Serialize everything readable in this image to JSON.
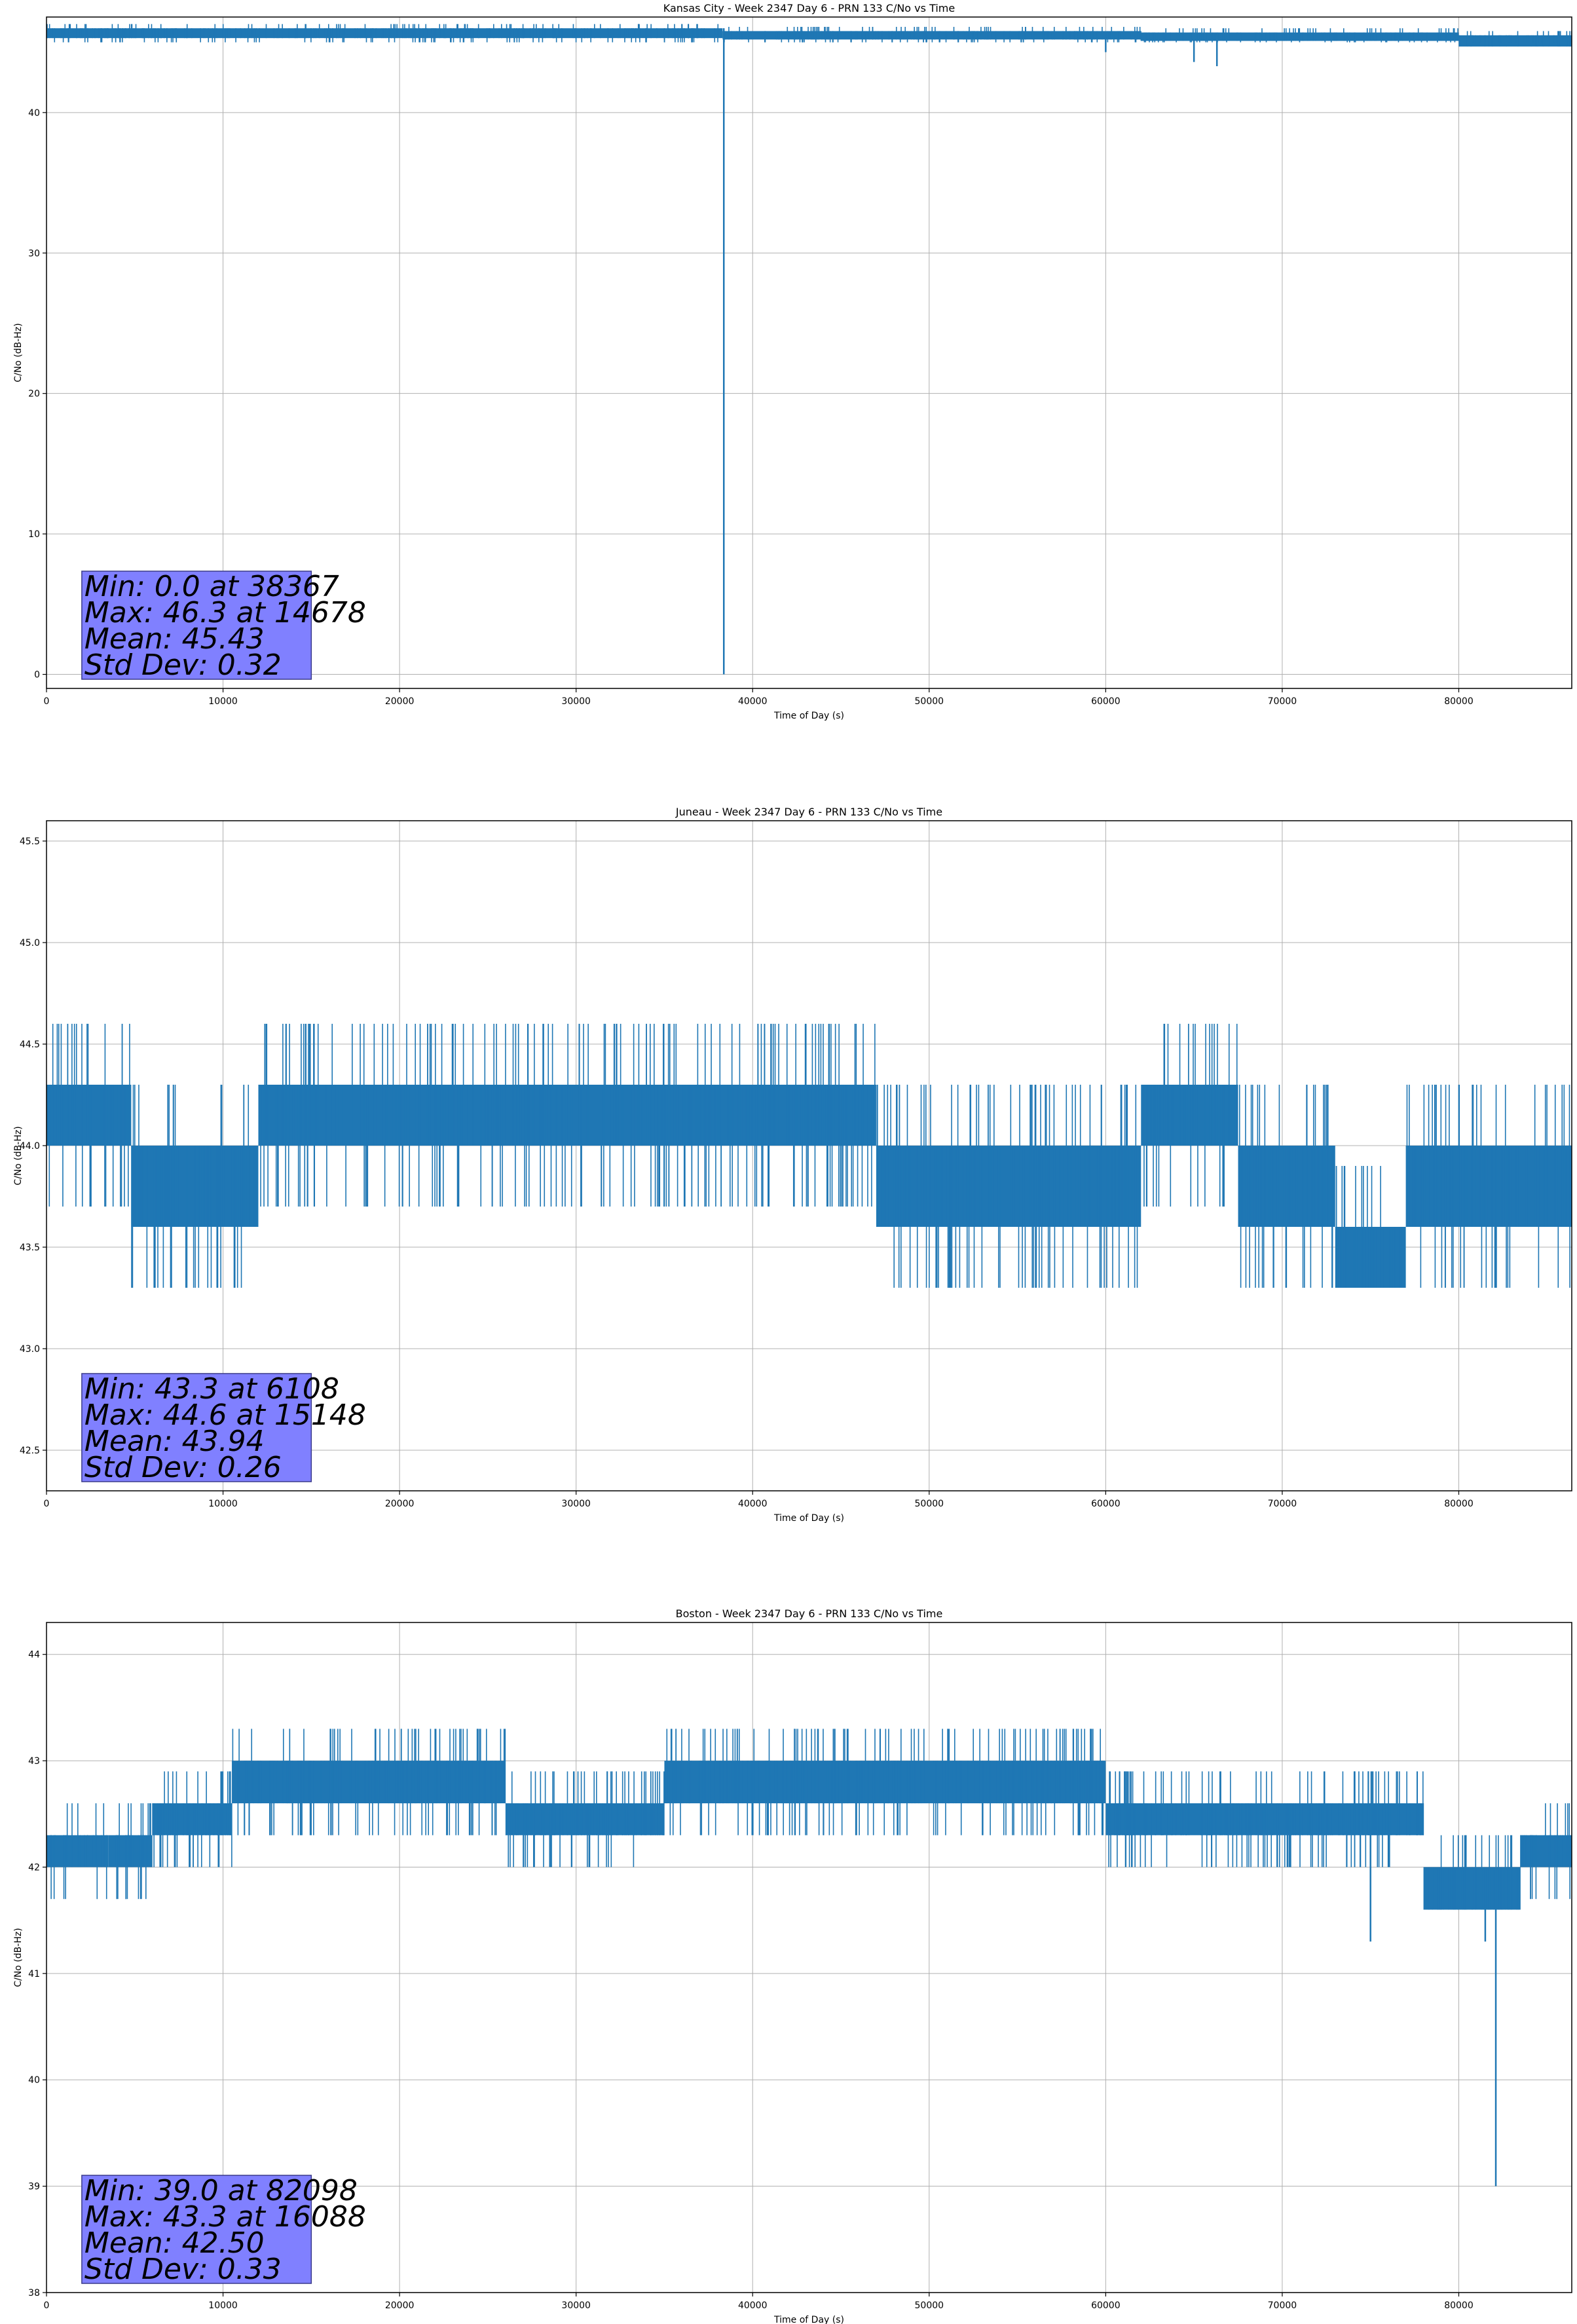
{
  "chart_data": [
    {
      "type": "line",
      "title": "Kansas City - Week 2347 Day 6 - PRN 133 C/No vs Time",
      "xlabel": "Time of Day (s)",
      "ylabel": "C/No (dB-Hz)",
      "xlim": [
        0,
        86400
      ],
      "ylim": [
        -1,
        46.8
      ],
      "xticks": [
        0,
        10000,
        20000,
        30000,
        40000,
        50000,
        60000,
        70000,
        80000
      ],
      "yticks": [
        0,
        10,
        20,
        30,
        40
      ],
      "ytick_labels": [
        "0",
        "10",
        "20",
        "30",
        "40"
      ],
      "color": "#1f77b4",
      "grid": true,
      "band_segments": [
        {
          "x0": 0,
          "x1": 38300,
          "low": 45.3,
          "high": 46.0
        },
        {
          "x0": 38300,
          "x1": 62000,
          "low": 45.2,
          "high": 45.8
        },
        {
          "x0": 62000,
          "x1": 80000,
          "low": 45.1,
          "high": 45.7
        },
        {
          "x0": 80000,
          "x1": 86400,
          "low": 44.7,
          "high": 45.5
        }
      ],
      "noise_low": 45.0,
      "noise_high": 46.3,
      "noise_count": 700,
      "seed": 11,
      "extremes": [
        {
          "x": 38367,
          "low": 0.0,
          "high": 46.0
        },
        {
          "x": 14678,
          "low": 45.3,
          "high": 46.3
        },
        {
          "x": 65000,
          "low": 43.6,
          "high": 45.6
        },
        {
          "x": 66300,
          "low": 43.3,
          "high": 45.5
        },
        {
          "x": 60000,
          "low": 44.3,
          "high": 45.6
        }
      ],
      "stats": [
        "Min: 0.0 at 38367",
        "Max: 46.3 at 14678",
        "Mean: 45.43",
        "Std Dev: 0.32"
      ],
      "stats_box_color": "#8080ff"
    },
    {
      "type": "line",
      "title": "Juneau - Week 2347 Day 6 - PRN 133 C/No vs Time",
      "xlabel": "Time of Day (s)",
      "ylabel": "C/No (dB-Hz)",
      "xlim": [
        0,
        86400
      ],
      "ylim": [
        42.3,
        45.6
      ],
      "xticks": [
        0,
        10000,
        20000,
        30000,
        40000,
        50000,
        60000,
        70000,
        80000
      ],
      "yticks": [
        42.5,
        43.0,
        43.5,
        44.0,
        44.5,
        45.0,
        45.5
      ],
      "ytick_labels": [
        "42.5",
        "43.0",
        "43.5",
        "44.0",
        "44.5",
        "45.0",
        "45.5"
      ],
      "color": "#1f77b4",
      "grid": true,
      "band_segments": [
        {
          "x0": 0,
          "x1": 4800,
          "low": 44.0,
          "high": 44.3
        },
        {
          "x0": 4800,
          "x1": 12000,
          "low": 43.6,
          "high": 44.0
        },
        {
          "x0": 12000,
          "x1": 47000,
          "low": 44.0,
          "high": 44.3
        },
        {
          "x0": 47000,
          "x1": 62000,
          "low": 43.6,
          "high": 44.0
        },
        {
          "x0": 62000,
          "x1": 67500,
          "low": 44.0,
          "high": 44.3
        },
        {
          "x0": 67500,
          "x1": 73000,
          "low": 43.6,
          "high": 44.0
        },
        {
          "x0": 73000,
          "x1": 77000,
          "low": 43.3,
          "high": 43.6
        },
        {
          "x0": 77000,
          "x1": 80000,
          "low": 43.6,
          "high": 44.0
        },
        {
          "x0": 80000,
          "x1": 86400,
          "low": 43.6,
          "high": 44.0
        }
      ],
      "noise_low": 43.3,
      "noise_high": 44.6,
      "noise_count": 900,
      "seed": 23,
      "extremes": [
        {
          "x": 6108,
          "low": 43.3,
          "high": 44.0
        },
        {
          "x": 15148,
          "low": 44.0,
          "high": 44.6
        }
      ],
      "stats": [
        "Min: 43.3 at 6108",
        "Max: 44.6 at 15148",
        "Mean: 43.94",
        "Std Dev: 0.26"
      ],
      "stats_box_color": "#8080ff"
    },
    {
      "type": "line",
      "title": "Boston - Week 2347 Day 6 - PRN 133 C/No vs Time",
      "xlabel": "Time of Day (s)",
      "ylabel": "C/No (dB-Hz)",
      "xlim": [
        0,
        86400
      ],
      "ylim": [
        38.0,
        44.3
      ],
      "xticks": [
        0,
        10000,
        20000,
        30000,
        40000,
        50000,
        60000,
        70000,
        80000
      ],
      "yticks": [
        38,
        39,
        40,
        41,
        42,
        43,
        44
      ],
      "ytick_labels": [
        "38",
        "39",
        "40",
        "41",
        "42",
        "43",
        "44"
      ],
      "color": "#1f77b4",
      "grid": true,
      "band_segments": [
        {
          "x0": 0,
          "x1": 3500,
          "low": 42.0,
          "high": 42.3
        },
        {
          "x0": 3500,
          "x1": 6000,
          "low": 42.0,
          "high": 42.3
        },
        {
          "x0": 6000,
          "x1": 10500,
          "low": 42.3,
          "high": 42.6
        },
        {
          "x0": 10500,
          "x1": 26000,
          "low": 42.6,
          "high": 43.0
        },
        {
          "x0": 26000,
          "x1": 35000,
          "low": 42.3,
          "high": 42.6
        },
        {
          "x0": 35000,
          "x1": 60000,
          "low": 42.6,
          "high": 43.0
        },
        {
          "x0": 60000,
          "x1": 78000,
          "low": 42.3,
          "high": 42.6
        },
        {
          "x0": 78000,
          "x1": 83500,
          "low": 41.6,
          "high": 42.0
        },
        {
          "x0": 83500,
          "x1": 86400,
          "low": 42.0,
          "high": 42.3
        }
      ],
      "noise_low": 41.6,
      "noise_high": 43.3,
      "noise_count": 900,
      "seed": 37,
      "extremes": [
        {
          "x": 82098,
          "low": 39.0,
          "high": 42.0
        },
        {
          "x": 16088,
          "low": 42.6,
          "high": 43.3
        },
        {
          "x": 75000,
          "low": 41.3,
          "high": 42.3
        },
        {
          "x": 81500,
          "low": 41.3,
          "high": 42.0
        }
      ],
      "stats": [
        "Min: 39.0 at 82098",
        "Max: 43.3 at 16088",
        "Mean: 42.50",
        "Std Dev: 0.33"
      ],
      "stats_box_color": "#8080ff"
    }
  ]
}
